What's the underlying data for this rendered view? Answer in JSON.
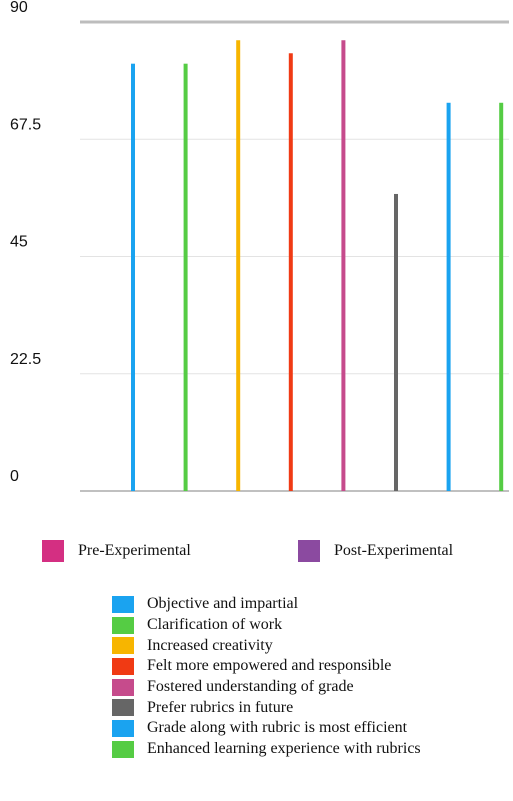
{
  "chart_data": {
    "type": "bar",
    "title": "",
    "xlabel": "",
    "ylabel": "",
    "ylim": [
      0,
      90
    ],
    "y_ticks": [
      "0",
      "22.5",
      "45",
      "67.5",
      "90"
    ],
    "grid": true,
    "bars": [
      {
        "name": "Objective and impartial",
        "value": 82,
        "color": "#1aa3f0"
      },
      {
        "name": "Clarification of work",
        "value": 82,
        "color": "#55cc44"
      },
      {
        "name": "Increased creativity",
        "value": 86.5,
        "color": "#f7b500"
      },
      {
        "name": "Felt more empowered and responsible",
        "value": 84,
        "color": "#f03a14"
      },
      {
        "name": "Fostered understanding of grade",
        "value": 86.5,
        "color": "#c64b8c"
      },
      {
        "name": "Prefer rubrics in future",
        "value": 57,
        "color": "#666666"
      },
      {
        "name": "Grade along with rubric is most efficient",
        "value": 74.5,
        "color": "#1aa3f0"
      },
      {
        "name": "Enhanced learning experience with rubrics",
        "value": 74.5,
        "color": "#55cc44"
      }
    ],
    "group_legend": [
      {
        "label": "Pre-Experimental",
        "color": "#d42f82"
      },
      {
        "label": "Post-Experimental",
        "color": "#8b4aa0"
      }
    ],
    "category_legend": [
      {
        "label": "Objective and impartial",
        "color": "#1aa3f0"
      },
      {
        "label": "Clarification of work",
        "color": "#55cc44"
      },
      {
        "label": "Increased creativity",
        "color": "#f7b500"
      },
      {
        "label": "Felt more empowered and responsible",
        "color": "#f03a14"
      },
      {
        "label": "Fostered understanding of grade",
        "color": "#c64b8c"
      },
      {
        "label": "Prefer rubrics in future",
        "color": "#666666"
      },
      {
        "label": "Grade along with rubric is most efficient",
        "color": "#1aa3f0"
      },
      {
        "label": "Enhanced learning experience with rubrics",
        "color": "#55cc44"
      }
    ]
  }
}
